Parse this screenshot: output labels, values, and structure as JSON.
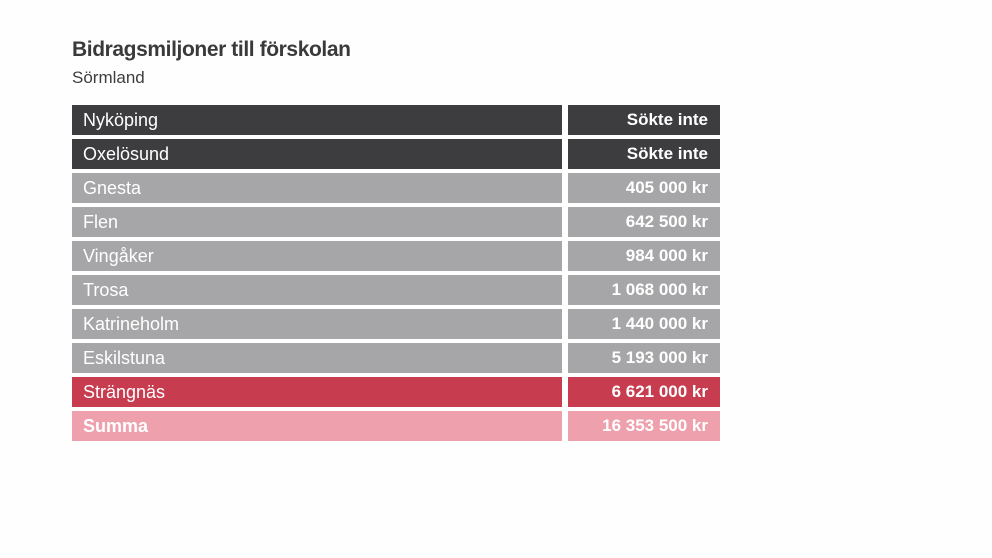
{
  "chart_data": {
    "type": "table",
    "title": "Bidragsmiljoner till förskolan",
    "subtitle": "Sörmland",
    "rows": [
      {
        "name": "Nyköping",
        "value_label": "Sökte inte",
        "value": null,
        "style": "dark"
      },
      {
        "name": "Oxelösund",
        "value_label": "Sökte inte",
        "value": null,
        "style": "dark"
      },
      {
        "name": "Gnesta",
        "value_label": "405 000 kr",
        "value": 405000,
        "style": "grey"
      },
      {
        "name": "Flen",
        "value_label": "642 500 kr",
        "value": 642500,
        "style": "grey"
      },
      {
        "name": "Vingåker",
        "value_label": "984 000 kr",
        "value": 984000,
        "style": "grey"
      },
      {
        "name": "Trosa",
        "value_label": "1 068 000 kr",
        "value": 1068000,
        "style": "grey"
      },
      {
        "name": "Katrineholm",
        "value_label": "1 440 000 kr",
        "value": 1440000,
        "style": "grey"
      },
      {
        "name": "Eskilstuna",
        "value_label": "5 193 000 kr",
        "value": 5193000,
        "style": "grey"
      },
      {
        "name": "Strängnäs",
        "value_label": "6 621 000 kr",
        "value": 6621000,
        "style": "highlight"
      },
      {
        "name": "Summa",
        "value_label": "16 353 500 kr",
        "value": 16353500,
        "style": "total"
      }
    ]
  },
  "colors": {
    "dark": "#3d3d3f",
    "grey": "#a6a6a8",
    "highlight": "#c83c4f",
    "total": "#efa0ad",
    "title_text": "#3a3a3a"
  }
}
